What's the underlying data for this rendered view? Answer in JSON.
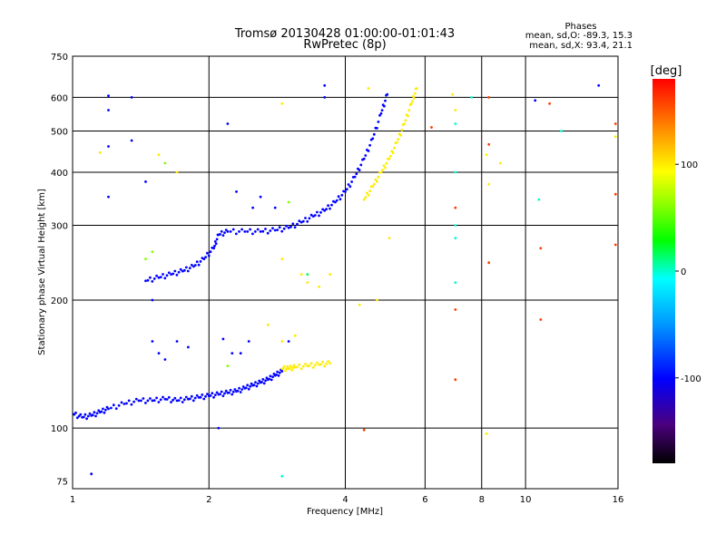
{
  "header": {
    "title_line1": "Tromsø 20130428 01:00:00-01:01:43",
    "title_line2": "RwPretec (8p)"
  },
  "phase_stats": {
    "heading": "Phases",
    "line_o": "mean, sd,O:  -89.3, 15.3",
    "line_x": "mean, sd,X:  93.4, 21.1"
  },
  "colorbar": {
    "label": "[deg]",
    "range": [
      -180,
      180
    ],
    "ticks": [
      {
        "value": 100,
        "label": "100"
      },
      {
        "value": 0,
        "label": "0"
      },
      {
        "value": -100,
        "label": "-100"
      }
    ]
  },
  "chart_data": {
    "type": "scatter",
    "xlabel": "Frequency [MHz]",
    "ylabel": "Stationary phase Virtual Height [km]",
    "xscale": "log",
    "yscale": "log",
    "xlim": [
      1,
      16
    ],
    "ylim": [
      72,
      750
    ],
    "x_ticks": [
      {
        "value": 1,
        "label": "1"
      },
      {
        "value": 2,
        "label": "2"
      },
      {
        "value": 4,
        "label": "4"
      },
      {
        "value": 6,
        "label": "6"
      },
      {
        "value": 8,
        "label": "8"
      },
      {
        "value": 10,
        "label": "10"
      },
      {
        "value": 16,
        "label": "16"
      }
    ],
    "y_ticks": [
      {
        "value": 75,
        "label": "75"
      },
      {
        "value": 100,
        "label": "100"
      },
      {
        "value": 200,
        "label": "200"
      },
      {
        "value": 300,
        "label": "300"
      },
      {
        "value": 400,
        "label": "400"
      },
      {
        "value": 500,
        "label": "500"
      },
      {
        "value": 600,
        "label": "600"
      },
      {
        "value": 750,
        "label": "750"
      }
    ],
    "x_grid": [
      2,
      4,
      6,
      8,
      10
    ],
    "y_grid": [
      100,
      200,
      300,
      400,
      500,
      600
    ],
    "color_by": "phase_deg",
    "traces": [
      {
        "name": "O-mode lower trace",
        "phase": -100,
        "points": [
          [
            1.0,
            108
          ],
          [
            1.05,
            106
          ],
          [
            1.1,
            107
          ],
          [
            1.15,
            109
          ],
          [
            1.2,
            111
          ],
          [
            1.3,
            114
          ],
          [
            1.4,
            116
          ],
          [
            1.5,
            116
          ],
          [
            1.6,
            117
          ],
          [
            1.7,
            116
          ],
          [
            1.8,
            117
          ],
          [
            1.9,
            118
          ],
          [
            2.0,
            119
          ],
          [
            2.1,
            120
          ],
          [
            2.2,
            121
          ],
          [
            2.3,
            122
          ],
          [
            2.4,
            124
          ],
          [
            2.5,
            126
          ],
          [
            2.6,
            128
          ],
          [
            2.7,
            130
          ],
          [
            2.8,
            133
          ],
          [
            2.9,
            136
          ]
        ]
      },
      {
        "name": "O-mode upper trace",
        "phase": -100,
        "points": [
          [
            1.45,
            222
          ],
          [
            1.55,
            226
          ],
          [
            1.65,
            230
          ],
          [
            1.75,
            234
          ],
          [
            1.85,
            240
          ],
          [
            1.95,
            250
          ],
          [
            2.05,
            265
          ],
          [
            2.1,
            285
          ],
          [
            2.2,
            290
          ],
          [
            2.4,
            290
          ],
          [
            2.6,
            290
          ],
          [
            2.8,
            292
          ],
          [
            3.0,
            296
          ],
          [
            3.2,
            305
          ],
          [
            3.4,
            315
          ],
          [
            3.6,
            325
          ],
          [
            3.8,
            340
          ],
          [
            4.0,
            360
          ],
          [
            4.2,
            390
          ],
          [
            4.4,
            430
          ],
          [
            4.6,
            480
          ],
          [
            4.8,
            550
          ],
          [
            4.95,
            610
          ]
        ]
      },
      {
        "name": "X-mode upper trace",
        "phase": 100,
        "points": [
          [
            4.4,
            345
          ],
          [
            4.6,
            370
          ],
          [
            4.8,
            400
          ],
          [
            5.0,
            430
          ],
          [
            5.2,
            470
          ],
          [
            5.4,
            520
          ],
          [
            5.6,
            580
          ],
          [
            5.75,
            630
          ]
        ]
      },
      {
        "name": "X-mode lower trace",
        "phase": 100,
        "points": [
          [
            2.9,
            138
          ],
          [
            3.0,
            138
          ],
          [
            3.1,
            139
          ],
          [
            3.3,
            140
          ],
          [
            3.5,
            141
          ],
          [
            3.7,
            142
          ]
        ]
      }
    ],
    "scattered": [
      {
        "x": 1.2,
        "y": 605,
        "phase": -100
      },
      {
        "x": 1.2,
        "y": 560,
        "phase": -100
      },
      {
        "x": 1.2,
        "y": 460,
        "phase": -100
      },
      {
        "x": 1.2,
        "y": 350,
        "phase": -100
      },
      {
        "x": 1.35,
        "y": 600,
        "phase": -100
      },
      {
        "x": 1.35,
        "y": 475,
        "phase": -100
      },
      {
        "x": 1.45,
        "y": 380,
        "phase": -100
      },
      {
        "x": 1.5,
        "y": 200,
        "phase": -100
      },
      {
        "x": 1.5,
        "y": 160,
        "phase": -100
      },
      {
        "x": 1.55,
        "y": 150,
        "phase": -100
      },
      {
        "x": 1.6,
        "y": 145,
        "phase": -100
      },
      {
        "x": 1.7,
        "y": 160,
        "phase": -100
      },
      {
        "x": 1.8,
        "y": 155,
        "phase": -100
      },
      {
        "x": 2.1,
        "y": 100,
        "phase": -100
      },
      {
        "x": 2.15,
        "y": 162,
        "phase": -100
      },
      {
        "x": 2.25,
        "y": 150,
        "phase": -100
      },
      {
        "x": 2.35,
        "y": 150,
        "phase": -100
      },
      {
        "x": 2.45,
        "y": 160,
        "phase": -100
      },
      {
        "x": 2.2,
        "y": 520,
        "phase": -100
      },
      {
        "x": 2.3,
        "y": 360,
        "phase": -100
      },
      {
        "x": 2.5,
        "y": 330,
        "phase": -100
      },
      {
        "x": 2.6,
        "y": 350,
        "phase": -100
      },
      {
        "x": 3.6,
        "y": 600,
        "phase": -100
      },
      {
        "x": 3.6,
        "y": 640,
        "phase": -100
      },
      {
        "x": 1.1,
        "y": 78,
        "phase": -100
      },
      {
        "x": 2.8,
        "y": 330,
        "phase": -100
      },
      {
        "x": 3.0,
        "y": 160,
        "phase": -100
      },
      {
        "x": 1.15,
        "y": 445,
        "phase": 100
      },
      {
        "x": 1.55,
        "y": 440,
        "phase": 100
      },
      {
        "x": 1.6,
        "y": 420,
        "phase": 60
      },
      {
        "x": 1.7,
        "y": 400,
        "phase": 100
      },
      {
        "x": 2.7,
        "y": 175,
        "phase": 100
      },
      {
        "x": 2.9,
        "y": 160,
        "phase": 100
      },
      {
        "x": 3.1,
        "y": 165,
        "phase": 100
      },
      {
        "x": 3.3,
        "y": 220,
        "phase": 100
      },
      {
        "x": 3.5,
        "y": 215,
        "phase": 100
      },
      {
        "x": 4.3,
        "y": 195,
        "phase": 100
      },
      {
        "x": 2.9,
        "y": 580,
        "phase": 100
      },
      {
        "x": 2.9,
        "y": 250,
        "phase": 100
      },
      {
        "x": 3.2,
        "y": 230,
        "phase": 100
      },
      {
        "x": 1.45,
        "y": 250,
        "phase": 60
      },
      {
        "x": 1.5,
        "y": 260,
        "phase": 60
      },
      {
        "x": 2.2,
        "y": 140,
        "phase": 60
      },
      {
        "x": 3.0,
        "y": 340,
        "phase": 60
      },
      {
        "x": 3.3,
        "y": 230,
        "phase": 20
      },
      {
        "x": 7.0,
        "y": 330,
        "phase": 160
      },
      {
        "x": 7.0,
        "y": 190,
        "phase": 160
      },
      {
        "x": 7.0,
        "y": 130,
        "phase": 160
      },
      {
        "x": 6.2,
        "y": 510,
        "phase": 160
      },
      {
        "x": 8.3,
        "y": 600,
        "phase": 160
      },
      {
        "x": 8.3,
        "y": 245,
        "phase": 160
      },
      {
        "x": 8.3,
        "y": 465,
        "phase": 160
      },
      {
        "x": 10.8,
        "y": 265,
        "phase": 160
      },
      {
        "x": 10.8,
        "y": 180,
        "phase": 160
      },
      {
        "x": 11.3,
        "y": 580,
        "phase": 160
      },
      {
        "x": 14.5,
        "y": 640,
        "phase": -100
      },
      {
        "x": 15.8,
        "y": 520,
        "phase": 160
      },
      {
        "x": 15.8,
        "y": 355,
        "phase": 160
      },
      {
        "x": 15.8,
        "y": 270,
        "phase": 160
      },
      {
        "x": 6.9,
        "y": 610,
        "phase": 100
      },
      {
        "x": 7.0,
        "y": 560,
        "phase": 100
      },
      {
        "x": 7.0,
        "y": 520,
        "phase": 0
      },
      {
        "x": 7.0,
        "y": 400,
        "phase": 0
      },
      {
        "x": 7.0,
        "y": 300,
        "phase": 0
      },
      {
        "x": 7.0,
        "y": 280,
        "phase": 0
      },
      {
        "x": 7.0,
        "y": 220,
        "phase": 0
      },
      {
        "x": 7.6,
        "y": 600,
        "phase": 0
      },
      {
        "x": 8.2,
        "y": 440,
        "phase": 100
      },
      {
        "x": 8.3,
        "y": 375,
        "phase": 100
      },
      {
        "x": 8.8,
        "y": 420,
        "phase": 100
      },
      {
        "x": 10.5,
        "y": 590,
        "phase": -100
      },
      {
        "x": 10.7,
        "y": 345,
        "phase": 0
      },
      {
        "x": 12.0,
        "y": 500,
        "phase": 0
      },
      {
        "x": 15.8,
        "y": 485,
        "phase": 100
      },
      {
        "x": 8.2,
        "y": 97,
        "phase": 100
      },
      {
        "x": 4.5,
        "y": 630,
        "phase": 100
      },
      {
        "x": 4.7,
        "y": 200,
        "phase": 100
      },
      {
        "x": 2.9,
        "y": 77,
        "phase": 0
      },
      {
        "x": 4.4,
        "y": 99,
        "phase": 160
      },
      {
        "x": 5.0,
        "y": 280,
        "phase": 100
      },
      {
        "x": 3.7,
        "y": 230,
        "phase": 100
      }
    ]
  }
}
